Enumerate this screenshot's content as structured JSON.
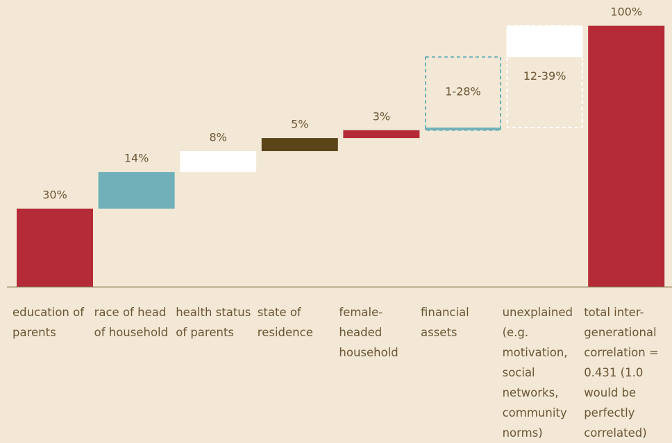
{
  "chart_data": {
    "type": "waterfall",
    "ylim": [
      0,
      100
    ],
    "bars": [
      {
        "category": "education of parents",
        "value": 30,
        "value_label": "30%",
        "color": "#b52a37"
      },
      {
        "category": "race of head of household",
        "value": 14,
        "value_label": "14%",
        "color": "#70b0b9"
      },
      {
        "category": "health status of parents",
        "value": 8,
        "value_label": "8%",
        "color": "#ffffff"
      },
      {
        "category": "state of residence",
        "value": 5,
        "value_label": "5%",
        "color": "#5a4418"
      },
      {
        "category": "female-headed household",
        "value": 3,
        "value_label": "3%",
        "color": "#b52a37"
      },
      {
        "category": "financial assets",
        "low": 1,
        "high": 28,
        "value_label": "1-28%",
        "color": "#70b0b9"
      },
      {
        "category": "unexplained (e.g. motivation, social networks, community norms)",
        "low": 12,
        "high": 39,
        "value_label": "12-39%",
        "color": "#ffffff"
      },
      {
        "category": "total inter-generational correlation = 0.431 (1.0 would be perfectly correlated)",
        "value": 100,
        "value_label": "100%",
        "color": "#b52a37"
      }
    ]
  }
}
